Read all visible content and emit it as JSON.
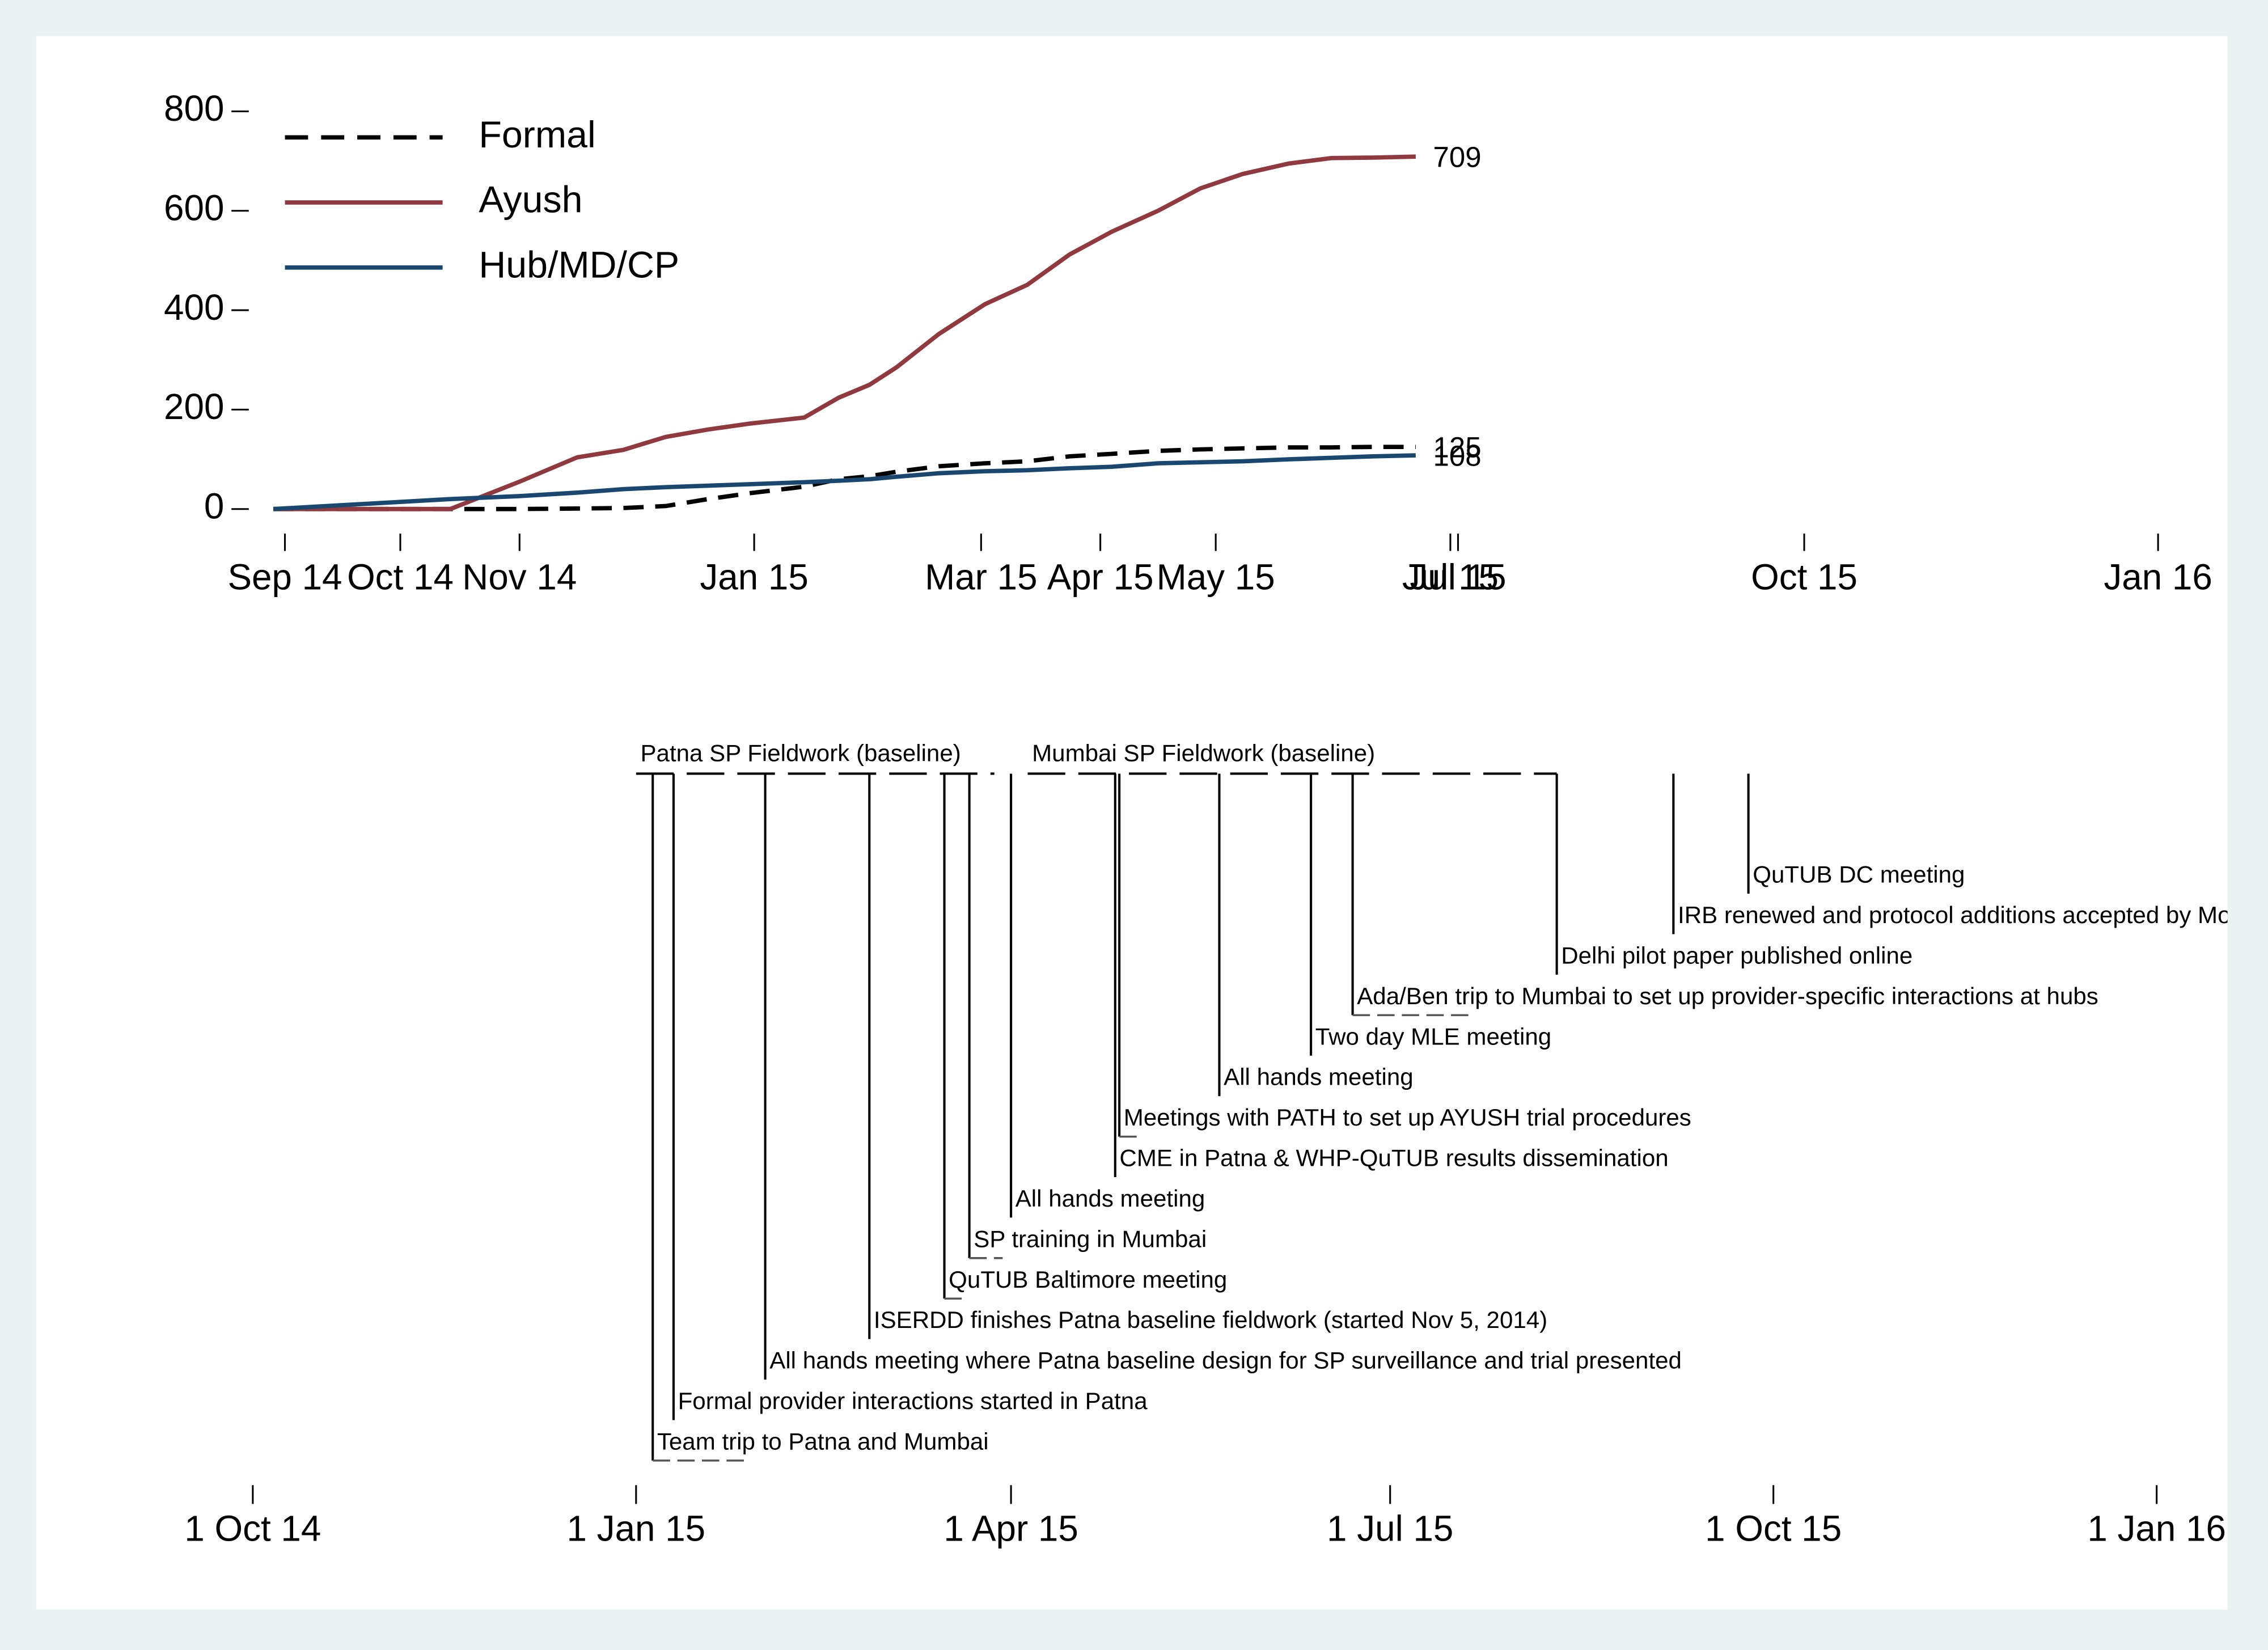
{
  "chart_data": [
    {
      "type": "line",
      "x": [
        19964,
        20010,
        20028,
        20043,
        20055,
        20066,
        20077,
        20088,
        20102,
        20111,
        20119,
        20126,
        20137,
        20149,
        20160,
        20171,
        20182,
        20194,
        20205,
        20216,
        20228,
        20239,
        20250,
        20261
      ],
      "xlim": [
        19964,
        20454
      ],
      "xticks": [
        {
          "value": 19967,
          "label": "Sep 14"
        },
        {
          "value": 19997,
          "label": "Oct 14"
        },
        {
          "value": 20028,
          "label": "Nov 14"
        },
        {
          "value": 20089,
          "label": "Jan 15"
        },
        {
          "value": 20148,
          "label": "Mar 15"
        },
        {
          "value": 20179,
          "label": "Apr 15"
        },
        {
          "value": 20209,
          "label": "May 15"
        },
        {
          "value": 20270,
          "label": "Jul 15"
        },
        {
          "value": 20272,
          "label": "Jul 15"
        },
        {
          "value": 20362,
          "label": "Oct 15"
        },
        {
          "value": 20454,
          "label": "Jan 16"
        }
      ],
      "ylim": [
        0,
        800
      ],
      "yticks": [
        0,
        200,
        400,
        600,
        800
      ],
      "legend": "top-left",
      "end_labels": true,
      "series": [
        {
          "name": "Formal",
          "color": "#000000",
          "style": "dashed",
          "values": [
            0,
            0,
            0,
            1,
            2,
            6,
            20,
            32,
            45,
            60,
            66,
            75,
            86,
            92,
            96,
            106,
            111,
            117,
            120,
            122,
            124,
            124,
            125,
            125
          ]
        },
        {
          "name": "Ayush",
          "color": "#903a40",
          "style": "solid",
          "values": [
            0,
            0,
            55,
            104,
            119,
            145,
            160,
            172,
            184,
            224,
            250,
            285,
            352,
            412,
            451,
            512,
            558,
            600,
            645,
            674,
            695,
            706,
            707,
            709
          ]
        },
        {
          "name": "Hub/MD/CP",
          "color": "#1a476f",
          "style": "solid",
          "values": [
            0,
            20,
            26,
            33,
            40,
            44,
            47,
            50,
            54,
            57,
            60,
            65,
            72,
            76,
            78,
            82,
            85,
            92,
            94,
            96,
            100,
            103,
            106,
            108
          ]
        }
      ]
    },
    {
      "type": "timeline",
      "xlim": [
        19945,
        20471
      ],
      "xticks": [
        {
          "value": 19997,
          "label": "1 Oct 14"
        },
        {
          "value": 20089,
          "label": "1 Jan 15"
        },
        {
          "value": 20179,
          "label": "1 Apr 15"
        },
        {
          "value": 20270,
          "label": "1 Jul 15"
        },
        {
          "value": 20362,
          "label": "1 Oct 15"
        },
        {
          "value": 20454,
          "label": "1 Jan 16"
        }
      ],
      "periods": [
        {
          "label": "Patna SP Fieldwork (baseline)",
          "start": 20089,
          "end": 20175
        },
        {
          "label": "Mumbai SP Fieldwork (baseline)",
          "start": 20183,
          "end": 20310
        }
      ],
      "events": [
        {
          "label": "Team trip to Patna and Mumbai",
          "start": 20093,
          "end": 20116
        },
        {
          "label": "Formal provider interactions started in Patna",
          "start": 20098
        },
        {
          "label": "All hands meeting where Patna baseline design for SP surveillance and trial presented",
          "start": 20120
        },
        {
          "label": "ISERDD finishes Patna baseline fieldwork (started Nov 5, 2014)",
          "start": 20145
        },
        {
          "label": "QuTUB Baltimore meeting",
          "start": 20163,
          "end": 20168
        },
        {
          "label": "SP training in Mumbai",
          "start": 20169,
          "end": 20177
        },
        {
          "label": "All hands meeting",
          "start": 20179
        },
        {
          "label": "CME in Patna & WHP-QuTUB results dissemination",
          "start": 20204
        },
        {
          "label": "Meetings with PATH to set up AYUSH trial procedures",
          "start": 20205,
          "end": 20210
        },
        {
          "label": "All hands meeting",
          "start": 20229
        },
        {
          "label": "Two day MLE meeting",
          "start": 20251
        },
        {
          "label": "Ada/Ben trip to Mumbai to set up provider-specific interactions at hubs",
          "start": 20261,
          "end": 20290
        },
        {
          "label": "Delhi pilot paper published online",
          "start": 20310
        },
        {
          "label": "IRB renewed and protocol additions accepted by Mo",
          "start": 20338
        },
        {
          "label": "QuTUB DC meeting",
          "start": 20356
        }
      ]
    }
  ]
}
